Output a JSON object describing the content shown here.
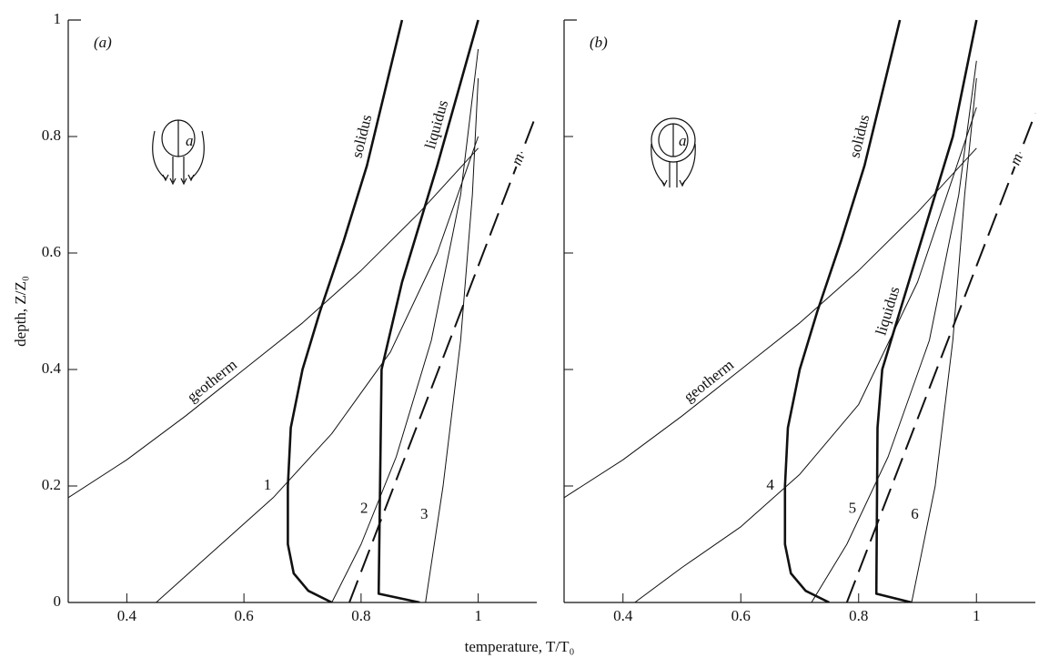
{
  "chart_data": [
    {
      "type": "line",
      "panel_label": "(a)",
      "inset_label": "a",
      "xlim": [
        0.3,
        1.1
      ],
      "ylim": [
        0,
        1
      ],
      "xticks": [
        0.4,
        0.6,
        0.8,
        1
      ],
      "yticks": [
        0,
        0.2,
        0.4,
        0.6,
        0.8,
        1
      ],
      "show_ytick_labels": true,
      "series": [
        {
          "name": "geotherm",
          "color": "#111111",
          "style": "thin",
          "x": [
            0.3,
            0.4,
            0.5,
            0.6,
            0.7,
            0.8,
            0.9,
            1.0
          ],
          "values": [
            0.18,
            0.245,
            0.32,
            0.4,
            0.48,
            0.57,
            0.67,
            0.78
          ]
        },
        {
          "name": "solidus",
          "color": "#111111",
          "style": "thick",
          "x": [
            0.75,
            0.71,
            0.685,
            0.675,
            0.675,
            0.68,
            0.7,
            0.73,
            0.77,
            0.81,
            0.87
          ],
          "values": [
            0,
            0.02,
            0.05,
            0.1,
            0.2,
            0.3,
            0.4,
            0.5,
            0.62,
            0.75,
            1.0
          ]
        },
        {
          "name": "liquidus",
          "color": "#111111",
          "style": "thick",
          "x": [
            0.9,
            0.83,
            0.835,
            0.87,
            0.93,
            1.0
          ],
          "values": [
            0,
            0.015,
            0.4,
            0.55,
            0.75,
            1.0
          ]
        },
        {
          "name": "m",
          "color": "#111111",
          "style": "dashed",
          "x": [
            0.78,
            1.1
          ],
          "values": [
            0,
            0.84
          ]
        },
        {
          "name": "1",
          "color": "#111111",
          "style": "thin",
          "x": [
            0.45,
            0.55,
            0.65,
            0.75,
            0.85,
            0.93,
            1.0
          ],
          "values": [
            0,
            0.09,
            0.18,
            0.29,
            0.43,
            0.6,
            0.8
          ]
        },
        {
          "name": "2",
          "color": "#111111",
          "style": "thin",
          "x": [
            0.75,
            0.8,
            0.86,
            0.92,
            0.97,
            1.0
          ],
          "values": [
            0,
            0.1,
            0.25,
            0.45,
            0.7,
            0.95
          ]
        },
        {
          "name": "3",
          "color": "#111111",
          "style": "thin",
          "x": [
            0.91,
            0.94,
            0.97,
            0.99,
            1.0
          ],
          "values": [
            0,
            0.2,
            0.45,
            0.7,
            0.9
          ]
        }
      ]
    },
    {
      "type": "line",
      "panel_label": "(b)",
      "inset_label": "a",
      "xlim": [
        0.3,
        1.1
      ],
      "ylim": [
        0,
        1
      ],
      "xticks": [
        0.4,
        0.6,
        0.8,
        1
      ],
      "yticks": [
        0,
        0.2,
        0.4,
        0.6,
        0.8,
        1
      ],
      "show_ytick_labels": false,
      "series": [
        {
          "name": "geotherm",
          "color": "#111111",
          "style": "thin",
          "x": [
            0.3,
            0.4,
            0.5,
            0.6,
            0.7,
            0.8,
            0.9,
            1.0
          ],
          "values": [
            0.18,
            0.245,
            0.32,
            0.4,
            0.48,
            0.57,
            0.67,
            0.78
          ]
        },
        {
          "name": "solidus",
          "color": "#111111",
          "style": "thick",
          "x": [
            0.75,
            0.71,
            0.685,
            0.675,
            0.675,
            0.68,
            0.7,
            0.73,
            0.77,
            0.81,
            0.87
          ],
          "values": [
            0,
            0.02,
            0.05,
            0.1,
            0.2,
            0.3,
            0.4,
            0.5,
            0.62,
            0.75,
            1.0
          ]
        },
        {
          "name": "liquidus",
          "color": "#111111",
          "style": "thick",
          "x": [
            0.89,
            0.83,
            0.832,
            0.84,
            0.9,
            0.96,
            1.0
          ],
          "values": [
            0,
            0.015,
            0.3,
            0.4,
            0.6,
            0.8,
            1.0
          ]
        },
        {
          "name": "m",
          "color": "#111111",
          "style": "dashed",
          "x": [
            0.78,
            1.1
          ],
          "values": [
            0,
            0.84
          ]
        },
        {
          "name": "4",
          "color": "#111111",
          "style": "thin",
          "x": [
            0.42,
            0.5,
            0.6,
            0.7,
            0.8,
            0.9,
            1.0
          ],
          "values": [
            0,
            0.06,
            0.13,
            0.22,
            0.34,
            0.55,
            0.85
          ]
        },
        {
          "name": "5",
          "color": "#111111",
          "style": "thin",
          "x": [
            0.72,
            0.78,
            0.85,
            0.92,
            0.97,
            1.0
          ],
          "values": [
            0,
            0.1,
            0.25,
            0.45,
            0.7,
            0.93
          ]
        },
        {
          "name": "6",
          "color": "#111111",
          "style": "thin",
          "x": [
            0.89,
            0.93,
            0.96,
            0.98,
            1.0
          ],
          "values": [
            0,
            0.2,
            0.45,
            0.7,
            0.9
          ]
        }
      ]
    }
  ],
  "xlabel": "temperature, T/T₀",
  "ylabel": "depth, Z/Z₀"
}
